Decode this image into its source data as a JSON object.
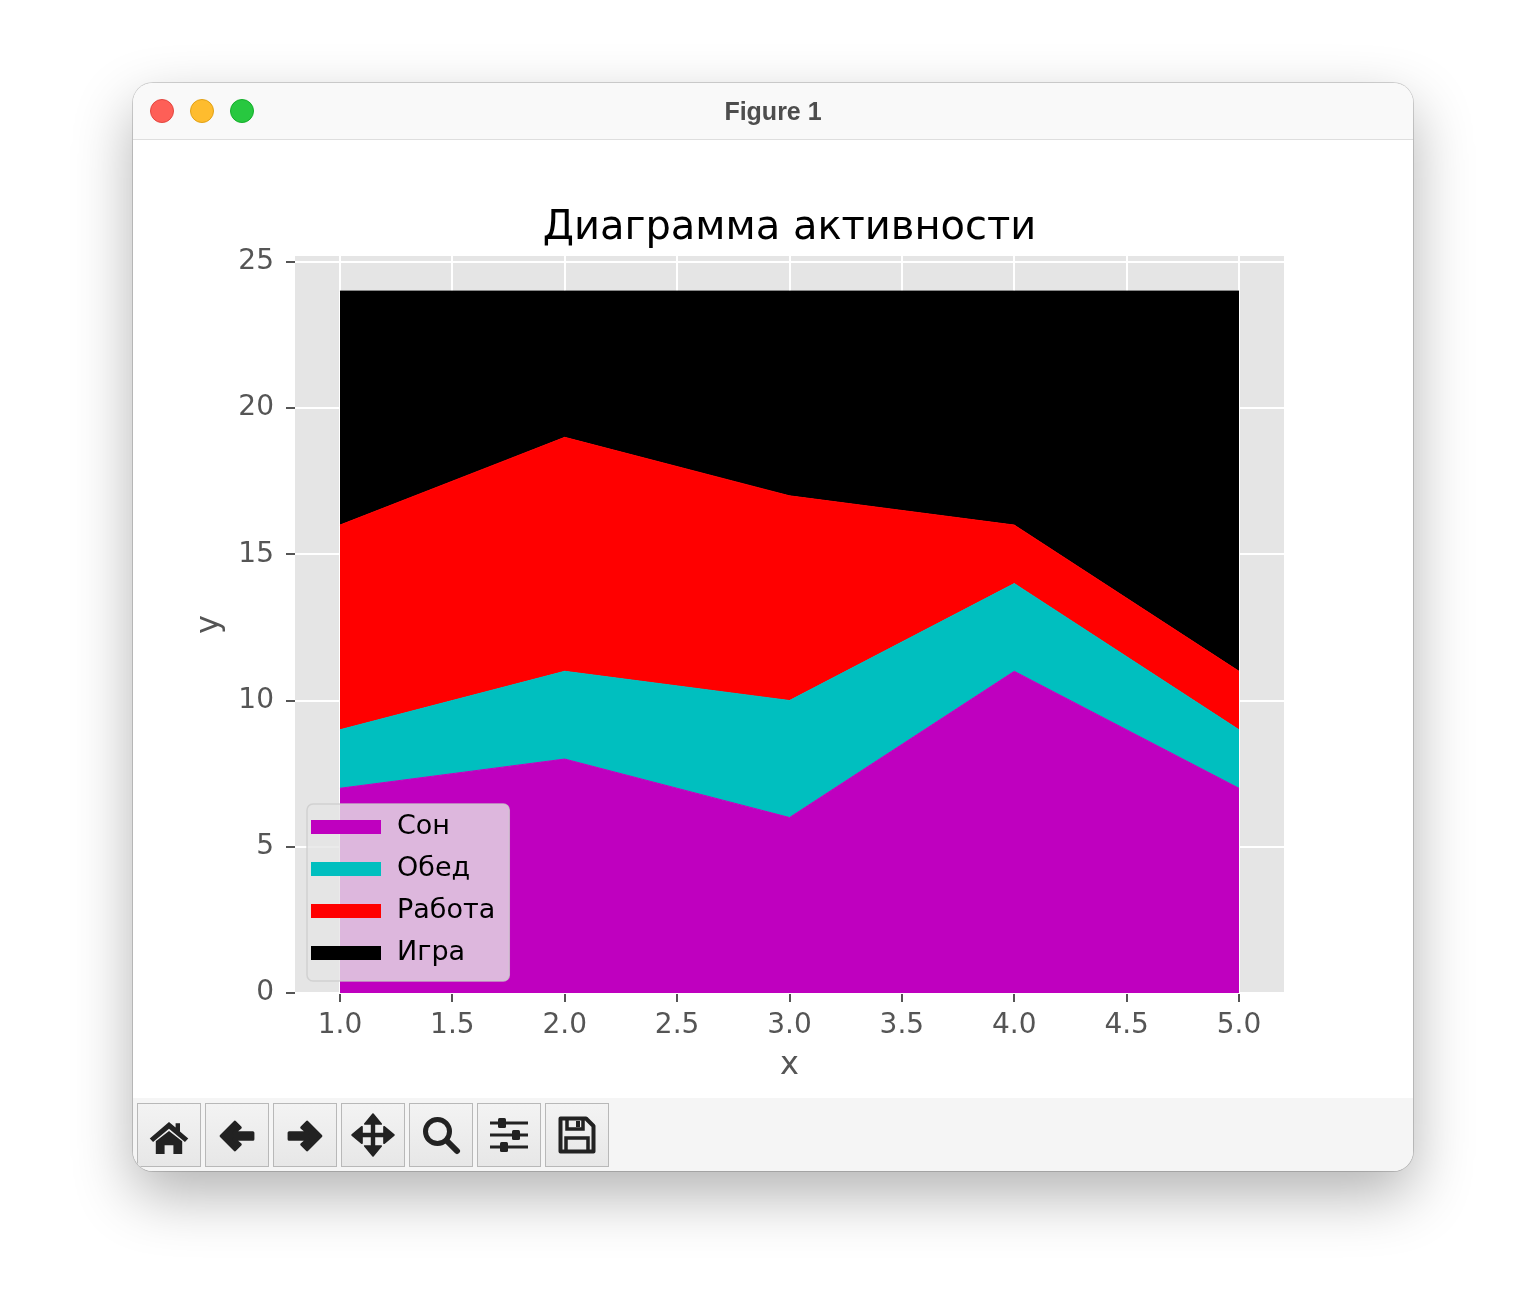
{
  "chart_data": {
    "type": "area",
    "title": "Диаграмма активности",
    "xlabel": "x",
    "ylabel": "y",
    "annotations": [
      "Figure 1"
    ],
    "x": [
      1,
      2,
      3,
      4,
      5
    ],
    "series": [
      {
        "name": "Сон",
        "color": "#bf00bf",
        "values": [
          7,
          8,
          6,
          11,
          7
        ]
      },
      {
        "name": "Обед",
        "color": "#00bfbf",
        "values": [
          2,
          3,
          4,
          3,
          2
        ]
      },
      {
        "name": "Работа",
        "color": "#ff0000",
        "values": [
          7,
          8,
          7,
          2,
          2
        ]
      },
      {
        "name": "Игра",
        "color": "#000000",
        "values": [
          8,
          5,
          7,
          8,
          13
        ]
      }
    ],
    "stacked": true,
    "xlim": [
      0.8,
      5.2
    ],
    "xticks": [
      {
        "value": 1,
        "label": "1.0"
      },
      {
        "value": 1.5,
        "label": "1.5"
      },
      {
        "value": 2,
        "label": "2.0"
      },
      {
        "value": 2.5,
        "label": "2.5"
      },
      {
        "value": 3,
        "label": "3.0"
      },
      {
        "value": 3.5,
        "label": "3.5"
      },
      {
        "value": 4,
        "label": "4.0"
      },
      {
        "value": 4.5,
        "label": "4.5"
      },
      {
        "value": 5,
        "label": "5.0"
      }
    ],
    "ylim": [
      0,
      25.2
    ],
    "yticks": [
      0,
      5,
      10,
      15,
      20,
      25
    ],
    "grid": true,
    "legend": "bottom left"
  }
}
